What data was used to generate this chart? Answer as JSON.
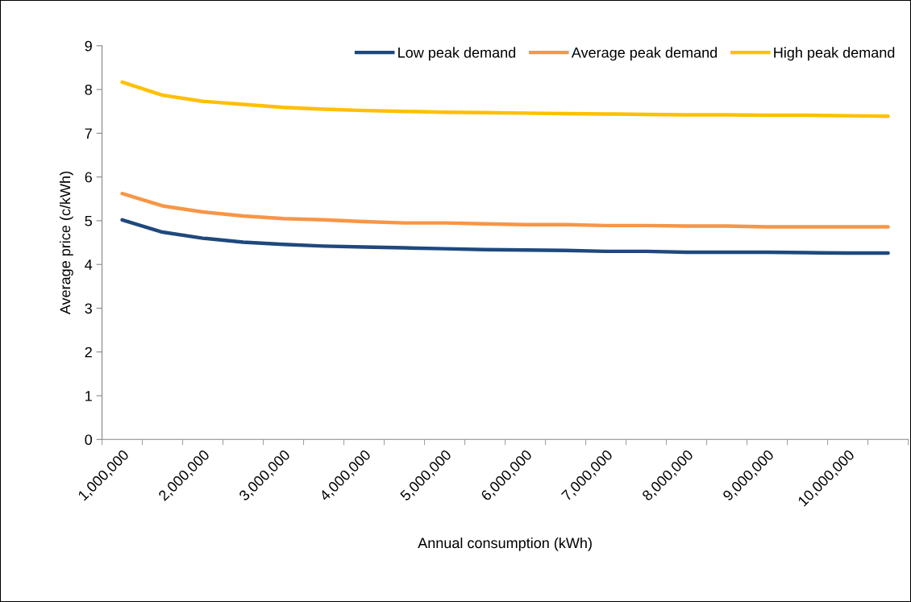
{
  "chart_data": {
    "type": "line",
    "xlabel": "Annual consumption (kWh)",
    "ylabel": "Average price (c/kWh)",
    "categories": [
      "1,000,000",
      null,
      "2,000,000",
      null,
      "3,000,000",
      null,
      "4,000,000",
      null,
      "5,000,000",
      null,
      "6,000,000",
      null,
      "7,000,000",
      null,
      "8,000,000",
      null,
      "9,000,000",
      null,
      "10,000,000",
      null
    ],
    "series": [
      {
        "name": "Low peak demand",
        "color": "#1f497d",
        "values": [
          5.02,
          4.74,
          4.6,
          4.51,
          4.46,
          4.42,
          4.4,
          4.38,
          4.36,
          4.34,
          4.33,
          4.32,
          4.3,
          4.3,
          4.28,
          4.28,
          4.28,
          4.27,
          4.26,
          4.26
        ]
      },
      {
        "name": "Average peak demand",
        "color": "#f79646",
        "values": [
          5.62,
          5.34,
          5.2,
          5.11,
          5.05,
          5.02,
          4.98,
          4.95,
          4.95,
          4.93,
          4.91,
          4.91,
          4.89,
          4.89,
          4.88,
          4.88,
          4.86,
          4.86,
          4.86,
          4.86
        ]
      },
      {
        "name": "High peak demand",
        "color": "#ffc000",
        "values": [
          8.17,
          7.87,
          7.73,
          7.66,
          7.59,
          7.55,
          7.52,
          7.5,
          7.48,
          7.47,
          7.46,
          7.45,
          7.44,
          7.43,
          7.42,
          7.42,
          7.41,
          7.41,
          7.4,
          7.39
        ]
      }
    ],
    "ylim": [
      0,
      9
    ],
    "yticks": [
      0,
      1,
      2,
      3,
      4,
      5,
      6,
      7,
      8,
      9
    ],
    "grid": false,
    "legend": "top right",
    "marker": "none",
    "line_style": "solid"
  }
}
